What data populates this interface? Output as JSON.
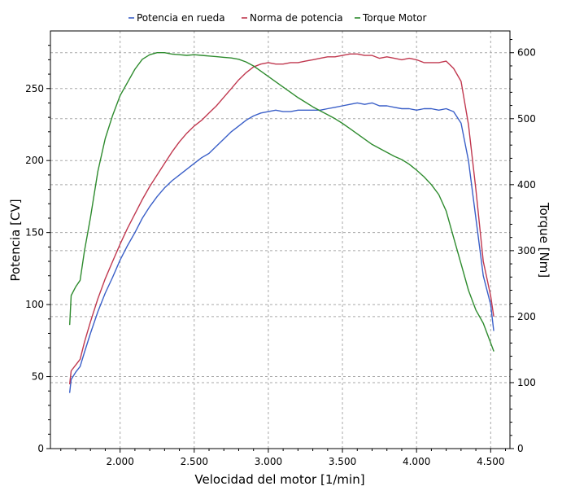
{
  "chart_data": {
    "type": "line",
    "legend_position": "top-center",
    "grid": true,
    "xlabel": "Velocidad del motor [1/min]",
    "ylabel": "Potencia [CV]",
    "y2label": "Torque [Nm]",
    "xlim": [
      1530,
      4630
    ],
    "ylim": [
      0,
      290
    ],
    "y2lim": [
      0,
      633
    ],
    "xticks": [
      2000,
      2500,
      3000,
      3500,
      4000,
      4500
    ],
    "xtick_labels": [
      "2.000",
      "2.500",
      "3.000",
      "3.500",
      "4.000",
      "4.500"
    ],
    "yticks": [
      0,
      50,
      100,
      150,
      200,
      250
    ],
    "y2ticks": [
      0,
      100,
      200,
      300,
      400,
      500,
      600
    ],
    "series": [
      {
        "name": "Potencia en rueda",
        "axis": "left",
        "color": "#3a5fc8",
        "points": [
          [
            1660,
            39
          ],
          [
            1670,
            48
          ],
          [
            1700,
            53
          ],
          [
            1730,
            57
          ],
          [
            1760,
            67
          ],
          [
            1800,
            80
          ],
          [
            1850,
            95
          ],
          [
            1900,
            108
          ],
          [
            1950,
            119
          ],
          [
            2000,
            131
          ],
          [
            2050,
            141
          ],
          [
            2100,
            150
          ],
          [
            2150,
            160
          ],
          [
            2200,
            168
          ],
          [
            2250,
            175
          ],
          [
            2300,
            181
          ],
          [
            2350,
            186
          ],
          [
            2400,
            190
          ],
          [
            2450,
            194
          ],
          [
            2500,
            198
          ],
          [
            2550,
            202
          ],
          [
            2600,
            205
          ],
          [
            2650,
            210
          ],
          [
            2700,
            215
          ],
          [
            2750,
            220
          ],
          [
            2800,
            224
          ],
          [
            2850,
            228
          ],
          [
            2900,
            231
          ],
          [
            2950,
            233
          ],
          [
            3000,
            234
          ],
          [
            3050,
            235
          ],
          [
            3100,
            234
          ],
          [
            3150,
            234
          ],
          [
            3200,
            235
          ],
          [
            3250,
            235
          ],
          [
            3300,
            235
          ],
          [
            3350,
            235
          ],
          [
            3400,
            236
          ],
          [
            3450,
            237
          ],
          [
            3500,
            238
          ],
          [
            3550,
            239
          ],
          [
            3600,
            240
          ],
          [
            3650,
            239
          ],
          [
            3700,
            240
          ],
          [
            3750,
            238
          ],
          [
            3800,
            238
          ],
          [
            3850,
            237
          ],
          [
            3900,
            236
          ],
          [
            3950,
            236
          ],
          [
            4000,
            235
          ],
          [
            4050,
            236
          ],
          [
            4100,
            236
          ],
          [
            4150,
            235
          ],
          [
            4200,
            236
          ],
          [
            4250,
            234
          ],
          [
            4300,
            226
          ],
          [
            4350,
            200
          ],
          [
            4400,
            160
          ],
          [
            4450,
            120
          ],
          [
            4500,
            100
          ],
          [
            4520,
            82
          ]
        ]
      },
      {
        "name": "Norma de potencia",
        "axis": "left",
        "color": "#c0384f",
        "points": [
          [
            1660,
            45
          ],
          [
            1670,
            54
          ],
          [
            1700,
            58
          ],
          [
            1730,
            62
          ],
          [
            1760,
            74
          ],
          [
            1800,
            88
          ],
          [
            1850,
            104
          ],
          [
            1900,
            118
          ],
          [
            1950,
            130
          ],
          [
            2000,
            142
          ],
          [
            2050,
            153
          ],
          [
            2100,
            163
          ],
          [
            2150,
            173
          ],
          [
            2200,
            182
          ],
          [
            2250,
            190
          ],
          [
            2300,
            198
          ],
          [
            2350,
            206
          ],
          [
            2400,
            213
          ],
          [
            2450,
            219
          ],
          [
            2500,
            224
          ],
          [
            2550,
            228
          ],
          [
            2600,
            233
          ],
          [
            2650,
            238
          ],
          [
            2700,
            244
          ],
          [
            2750,
            250
          ],
          [
            2800,
            256
          ],
          [
            2850,
            261
          ],
          [
            2900,
            265
          ],
          [
            2950,
            267
          ],
          [
            3000,
            268
          ],
          [
            3050,
            267
          ],
          [
            3100,
            267
          ],
          [
            3150,
            268
          ],
          [
            3200,
            268
          ],
          [
            3250,
            269
          ],
          [
            3300,
            270
          ],
          [
            3350,
            271
          ],
          [
            3400,
            272
          ],
          [
            3450,
            272
          ],
          [
            3500,
            273
          ],
          [
            3550,
            274
          ],
          [
            3600,
            274
          ],
          [
            3650,
            273
          ],
          [
            3700,
            273
          ],
          [
            3750,
            271
          ],
          [
            3800,
            272
          ],
          [
            3850,
            271
          ],
          [
            3900,
            270
          ],
          [
            3950,
            271
          ],
          [
            4000,
            270
          ],
          [
            4050,
            268
          ],
          [
            4100,
            268
          ],
          [
            4150,
            268
          ],
          [
            4200,
            269
          ],
          [
            4250,
            264
          ],
          [
            4300,
            255
          ],
          [
            4350,
            225
          ],
          [
            4400,
            180
          ],
          [
            4450,
            130
          ],
          [
            4500,
            106
          ],
          [
            4520,
            92
          ]
        ]
      },
      {
        "name": "Torque Motor",
        "axis": "right",
        "color": "#2e8b2e",
        "points": [
          [
            1660,
            188
          ],
          [
            1670,
            232
          ],
          [
            1700,
            245
          ],
          [
            1730,
            255
          ],
          [
            1760,
            300
          ],
          [
            1800,
            350
          ],
          [
            1850,
            420
          ],
          [
            1900,
            470
          ],
          [
            1950,
            505
          ],
          [
            2000,
            535
          ],
          [
            2050,
            555
          ],
          [
            2100,
            575
          ],
          [
            2150,
            590
          ],
          [
            2200,
            597
          ],
          [
            2250,
            600
          ],
          [
            2300,
            600
          ],
          [
            2350,
            598
          ],
          [
            2400,
            597
          ],
          [
            2450,
            596
          ],
          [
            2500,
            597
          ],
          [
            2550,
            596
          ],
          [
            2600,
            595
          ],
          [
            2650,
            594
          ],
          [
            2700,
            593
          ],
          [
            2750,
            592
          ],
          [
            2800,
            590
          ],
          [
            2850,
            586
          ],
          [
            2900,
            580
          ],
          [
            2950,
            572
          ],
          [
            3000,
            564
          ],
          [
            3050,
            556
          ],
          [
            3100,
            548
          ],
          [
            3150,
            540
          ],
          [
            3200,
            532
          ],
          [
            3250,
            525
          ],
          [
            3300,
            518
          ],
          [
            3350,
            512
          ],
          [
            3400,
            506
          ],
          [
            3450,
            500
          ],
          [
            3500,
            493
          ],
          [
            3550,
            485
          ],
          [
            3600,
            477
          ],
          [
            3650,
            469
          ],
          [
            3700,
            461
          ],
          [
            3750,
            455
          ],
          [
            3800,
            449
          ],
          [
            3850,
            443
          ],
          [
            3900,
            438
          ],
          [
            3950,
            431
          ],
          [
            4000,
            422
          ],
          [
            4050,
            412
          ],
          [
            4100,
            400
          ],
          [
            4150,
            385
          ],
          [
            4200,
            360
          ],
          [
            4250,
            320
          ],
          [
            4300,
            280
          ],
          [
            4350,
            240
          ],
          [
            4400,
            210
          ],
          [
            4450,
            190
          ],
          [
            4500,
            160
          ],
          [
            4520,
            148
          ]
        ]
      }
    ]
  }
}
